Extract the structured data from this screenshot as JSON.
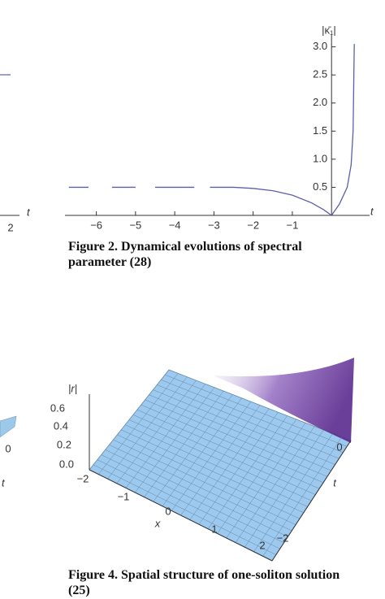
{
  "chart_data": {
    "type": "line",
    "x": [
      -6.7,
      -6.2,
      -6.1,
      -5.6,
      -5.0,
      -4.9,
      -4.5,
      -3.5,
      -3.4,
      -3.1,
      -2.5,
      -2.0,
      -1.5,
      -1.0,
      -0.5,
      -0.2,
      0,
      0.2,
      0.4,
      0.5,
      0.55,
      0.58
    ],
    "series": [
      {
        "color": "#5c5fa8",
        "values": [
          0.5,
          0.5,
          null,
          0.5,
          0.5,
          null,
          0.5,
          0.5,
          null,
          0.5,
          0.5,
          0.48,
          0.44,
          0.36,
          0.22,
          0.1,
          0,
          0.2,
          0.5,
          0.9,
          1.5,
          3.05
        ]
      }
    ],
    "xlim": [
      -6.8,
      0.97
    ],
    "ylim": [
      0,
      3.4
    ],
    "xticks": [
      {
        "value": -6,
        "label": "−6"
      },
      {
        "value": -5,
        "label": "−5"
      },
      {
        "value": -4,
        "label": "−4"
      },
      {
        "value": -3,
        "label": "−3"
      },
      {
        "value": -2,
        "label": "−2"
      },
      {
        "value": -1,
        "label": "−1"
      }
    ],
    "yticks": [
      0.5,
      {
        "value": 1,
        "label": "1.0"
      },
      1.5,
      {
        "value": 2,
        "label": "2.0"
      },
      2.5,
      {
        "value": 3,
        "label": "3.0"
      }
    ],
    "xlabel": "t",
    "ylabel": "|κ̄₁|"
  },
  "captions": {
    "figure_2": "Figure 2. Dynamical evolutions of spectral parameter (28)",
    "figure_4": "Figure 4. Spatial structure of one-soliton solution (25)"
  },
  "fragments": {
    "figure_1_tick": "2",
    "figure_1_axis": "t",
    "figure_3_tick": "0",
    "figure_3_axis": "t"
  },
  "figure_4": {
    "zlabel": "|r|",
    "zticks": [
      "0.6",
      "0.4",
      "0.2",
      "0.0"
    ],
    "xticks": [
      "−2",
      "−1",
      "0",
      "1",
      "2"
    ],
    "xlabel": "x",
    "tticks": [
      "0",
      "−2"
    ],
    "tlabel": "t"
  }
}
